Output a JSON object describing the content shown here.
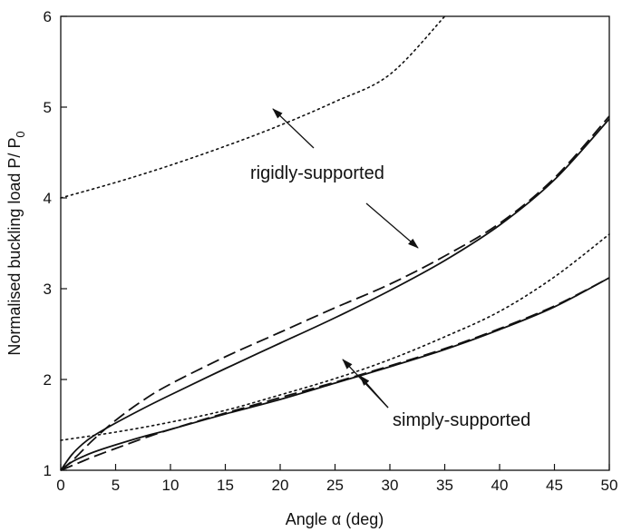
{
  "chart_data": {
    "type": "line",
    "xlabel": "Angle α   (deg)",
    "ylabel": "Normalised buckling load  P/ P",
    "ylabel_sub": "0",
    "xlim": [
      0,
      50
    ],
    "ylim": [
      1,
      6
    ],
    "x_ticks": [
      0,
      5,
      10,
      15,
      20,
      25,
      30,
      35,
      40,
      45,
      50
    ],
    "y_ticks": [
      1,
      2,
      3,
      4,
      5,
      6
    ],
    "grid": false,
    "series": [
      {
        "group": "rigidly-supported",
        "style": "solid",
        "x": [
          0,
          1,
          2,
          3,
          5,
          7.5,
          10,
          15,
          20,
          25,
          30,
          35,
          40,
          45,
          50
        ],
        "values": [
          1.0,
          1.17,
          1.29,
          1.38,
          1.52,
          1.68,
          1.83,
          2.12,
          2.4,
          2.68,
          2.98,
          3.31,
          3.7,
          4.2,
          4.87
        ]
      },
      {
        "group": "rigidly-supported",
        "style": "dashed",
        "x": [
          0,
          1,
          2,
          3,
          5,
          7.5,
          10,
          15,
          20,
          25,
          30,
          35,
          40,
          45,
          50
        ],
        "values": [
          1.0,
          1.1,
          1.22,
          1.34,
          1.55,
          1.77,
          1.95,
          2.25,
          2.52,
          2.79,
          3.05,
          3.36,
          3.72,
          4.22,
          4.9
        ]
      },
      {
        "group": "rigidly-supported",
        "style": "dotted",
        "x": [
          0,
          5,
          10,
          15,
          20,
          25,
          30,
          35
        ],
        "values": [
          4.0,
          4.17,
          4.36,
          4.57,
          4.8,
          5.06,
          5.36,
          6.0
        ]
      },
      {
        "group": "simply-supported",
        "style": "solid",
        "x": [
          0,
          1,
          2,
          3,
          5,
          7.5,
          10,
          15,
          20,
          25,
          30,
          35,
          40,
          45,
          50
        ],
        "values": [
          1.0,
          1.09,
          1.15,
          1.2,
          1.28,
          1.37,
          1.45,
          1.62,
          1.78,
          1.96,
          2.14,
          2.33,
          2.55,
          2.8,
          3.12
        ]
      },
      {
        "group": "simply-supported",
        "style": "dashed",
        "x": [
          0,
          1,
          2,
          3,
          5,
          7.5,
          10,
          15,
          20,
          25,
          30,
          35,
          40,
          45,
          50
        ],
        "values": [
          1.0,
          1.05,
          1.1,
          1.15,
          1.24,
          1.35,
          1.45,
          1.63,
          1.8,
          1.97,
          2.15,
          2.34,
          2.56,
          2.81,
          3.12
        ]
      },
      {
        "group": "simply-supported",
        "style": "dotted",
        "x": [
          0,
          5,
          10,
          15,
          20,
          25,
          30,
          35,
          40,
          45,
          50
        ],
        "values": [
          1.33,
          1.42,
          1.53,
          1.66,
          1.83,
          2.01,
          2.22,
          2.47,
          2.75,
          3.13,
          3.6
        ]
      }
    ],
    "annotations": [
      {
        "text": "rigidly-supported"
      },
      {
        "text": "simply-supported"
      }
    ]
  }
}
